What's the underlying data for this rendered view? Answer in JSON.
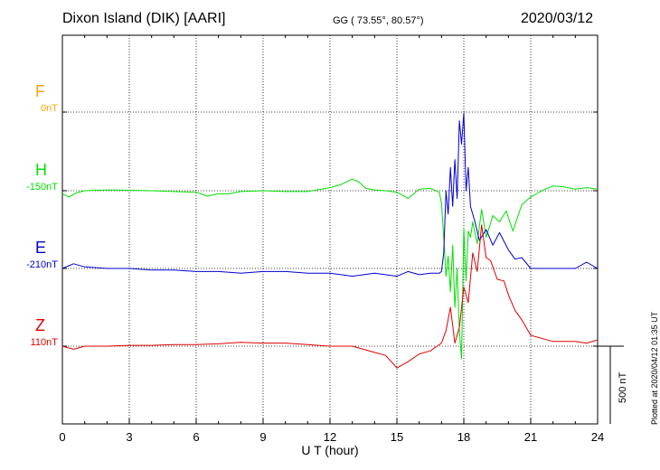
{
  "header": {
    "station": "Dixon Island (DIK)  [AARI]",
    "coords": "GG ( 73.55°,  80.57°)",
    "date": "2020/03/12"
  },
  "plotted_note": "Plotted at 2020/04/12 01:35 UT",
  "scale_label": "500 nT",
  "chart_data": {
    "type": "line",
    "title": "",
    "xlabel": "U T (hour)",
    "ylabel": "",
    "xlim": [
      0,
      24
    ],
    "xticks": [
      "0",
      "3",
      "6",
      "9",
      "12",
      "15",
      "18",
      "21",
      "24"
    ],
    "grid": true,
    "components": [
      {
        "name": "F",
        "baseline_label": "0nT",
        "color": "#ffa500"
      },
      {
        "name": "H",
        "baseline_label": "-150nT",
        "color": "#00e000"
      },
      {
        "name": "E",
        "baseline_label": "-210nT",
        "color": "#0000d0"
      },
      {
        "name": "Z",
        "baseline_label": "110nT",
        "color": "#e00000"
      }
    ],
    "series": [
      {
        "name": "H",
        "x": [
          0,
          0.3,
          0.6,
          1,
          2,
          3,
          4,
          5,
          6,
          6.5,
          7,
          7.5,
          8,
          9,
          10,
          11,
          12,
          12.5,
          13,
          13.3,
          13.6,
          14,
          14.5,
          15,
          15.5,
          16,
          16.5,
          16.9,
          17.0,
          17.1,
          17.2,
          17.3,
          17.4,
          17.5,
          17.6,
          17.7,
          17.8,
          17.9,
          18.0,
          18.1,
          18.2,
          18.3,
          18.4,
          18.6,
          18.8,
          19.0,
          19.3,
          19.6,
          19.9,
          20.2,
          20.6,
          21,
          21.5,
          22,
          22.5,
          23,
          23.5,
          24
        ],
        "y": [
          -20,
          -40,
          -15,
          0,
          5,
          3,
          0,
          -5,
          -10,
          -35,
          -20,
          -20,
          -5,
          0,
          -5,
          -5,
          20,
          40,
          75,
          55,
          15,
          5,
          0,
          -10,
          -50,
          10,
          15,
          -10,
          -80,
          -300,
          -550,
          -420,
          -650,
          -350,
          -750,
          -500,
          -900,
          -1080,
          -240,
          -580,
          -260,
          -300,
          -200,
          -340,
          -120,
          -300,
          -160,
          -200,
          -130,
          -260,
          -90,
          -40,
          0,
          30,
          25,
          10,
          20,
          10
        ]
      },
      {
        "name": "E",
        "x": [
          0,
          0.5,
          1,
          2,
          3,
          4,
          5,
          6,
          7,
          8,
          9,
          10,
          11,
          12,
          13,
          14,
          15,
          15.5,
          16,
          16.5,
          16.9,
          17.0,
          17.1,
          17.2,
          17.3,
          17.4,
          17.5,
          17.6,
          17.7,
          17.8,
          17.9,
          18.0,
          18.1,
          18.2,
          18.3,
          18.5,
          18.7,
          19.0,
          19.3,
          19.6,
          20.0,
          20.3,
          20.6,
          21,
          22,
          23,
          23.5,
          24
        ],
        "y": [
          0,
          30,
          10,
          0,
          0,
          -10,
          -10,
          -20,
          -20,
          -30,
          -20,
          -20,
          -30,
          -30,
          -50,
          -30,
          -50,
          -20,
          -40,
          -30,
          -30,
          -20,
          100,
          500,
          350,
          650,
          400,
          700,
          450,
          950,
          800,
          1000,
          500,
          650,
          400,
          300,
          180,
          250,
          150,
          230,
          120,
          60,
          70,
          0,
          0,
          0,
          40,
          0
        ]
      },
      {
        "name": "Z",
        "x": [
          0,
          0.5,
          1,
          2,
          3,
          4,
          5,
          6,
          7,
          8,
          9,
          10,
          11,
          12,
          13,
          14,
          14.5,
          15,
          15.5,
          16,
          16.5,
          17.0,
          17.2,
          17.4,
          17.6,
          17.8,
          18.0,
          18.2,
          18.4,
          18.6,
          18.8,
          19.0,
          19.2,
          19.5,
          19.8,
          20.0,
          20.3,
          20.6,
          21,
          22,
          23,
          23.5,
          24
        ],
        "y": [
          0,
          -20,
          0,
          0,
          5,
          5,
          10,
          10,
          15,
          25,
          20,
          20,
          10,
          0,
          0,
          -40,
          -60,
          -140,
          -100,
          -50,
          -30,
          20,
          100,
          250,
          20,
          120,
          380,
          280,
          600,
          480,
          780,
          570,
          550,
          430,
          420,
          330,
          230,
          170,
          70,
          30,
          30,
          20,
          40
        ]
      }
    ]
  }
}
